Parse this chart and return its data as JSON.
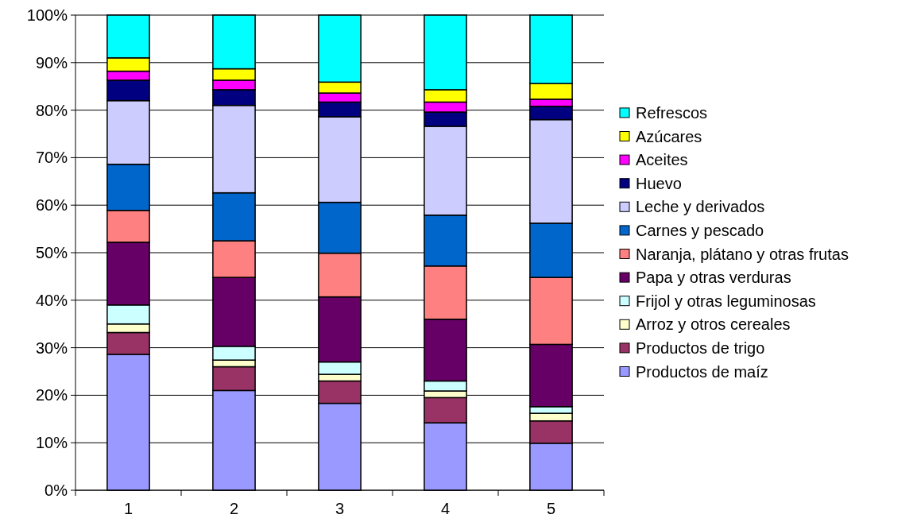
{
  "chart_data": {
    "type": "bar",
    "stacked": true,
    "categories": [
      "1",
      "2",
      "3",
      "4",
      "5"
    ],
    "ylim": [
      0,
      100
    ],
    "yticks": [
      {
        "value": 0,
        "label": "0%"
      },
      {
        "value": 10,
        "label": "10%"
      },
      {
        "value": 20,
        "label": "20%"
      },
      {
        "value": 30,
        "label": "30%"
      },
      {
        "value": 40,
        "label": "40%"
      },
      {
        "value": 50,
        "label": "50%"
      },
      {
        "value": 60,
        "label": "60%"
      },
      {
        "value": 70,
        "label": "70%"
      },
      {
        "value": 80,
        "label": "80%"
      },
      {
        "value": 90,
        "label": "90%"
      },
      {
        "value": 100,
        "label": "100%"
      }
    ],
    "grid": "y",
    "legend": "right",
    "series": [
      {
        "name": "Productos de maíz",
        "color": "#9999ff",
        "values": [
          28.6,
          21.0,
          18.3,
          14.2,
          9.9
        ]
      },
      {
        "name": "Productos de trigo",
        "color": "#993366",
        "values": [
          4.6,
          5.0,
          4.7,
          5.3,
          4.7
        ]
      },
      {
        "name": "Arroz y otros cereales",
        "color": "#ffffcc",
        "values": [
          1.8,
          1.4,
          1.4,
          1.4,
          1.6
        ]
      },
      {
        "name": "Frijol y otras leguminosas",
        "color": "#ccffff",
        "values": [
          4.0,
          2.9,
          2.6,
          2.1,
          1.4
        ]
      },
      {
        "name": "Papa y otras verduras",
        "color": "#660066",
        "values": [
          13.2,
          14.5,
          13.7,
          13.0,
          13.1
        ]
      },
      {
        "name": "Naranja, plátano y otras frutas",
        "color": "#ff8080",
        "values": [
          6.7,
          7.7,
          9.2,
          11.2,
          14.1
        ]
      },
      {
        "name": "Carnes y pescado",
        "color": "#0066cc",
        "values": [
          9.7,
          10.1,
          10.7,
          10.7,
          11.4
        ]
      },
      {
        "name": "Leche y derivados",
        "color": "#ccccff",
        "values": [
          13.4,
          18.4,
          18.0,
          18.7,
          21.8
        ]
      },
      {
        "name": "Huevo",
        "color": "#000080",
        "values": [
          4.3,
          3.3,
          3.1,
          3.0,
          2.8
        ]
      },
      {
        "name": "Aceites",
        "color": "#ff00ff",
        "values": [
          1.9,
          2.0,
          1.9,
          2.1,
          1.5
        ]
      },
      {
        "name": "Azúcares",
        "color": "#ffff00",
        "values": [
          2.8,
          2.4,
          2.3,
          2.6,
          3.3
        ]
      },
      {
        "name": "Refrescos",
        "color": "#00ffff",
        "values": [
          9.0,
          11.3,
          14.1,
          15.7,
          14.4
        ]
      }
    ]
  }
}
